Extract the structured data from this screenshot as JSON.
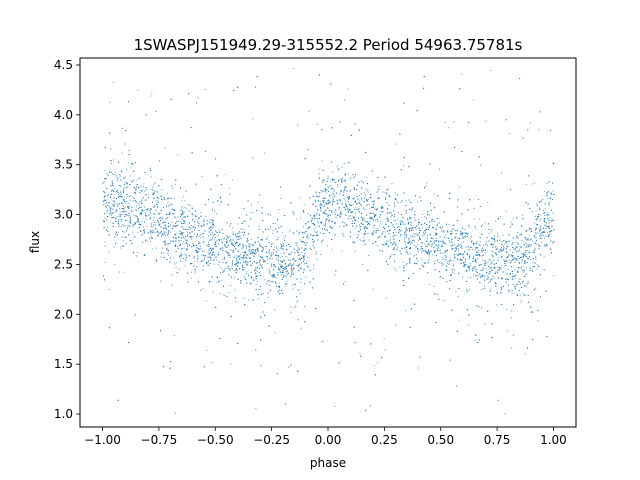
{
  "chart_data": {
    "type": "scatter",
    "title": "1SWASPJ151949.29-315552.2 Period 54963.75781s",
    "xlabel": "phase",
    "ylabel": "flux",
    "xlim": [
      -1.1,
      1.1
    ],
    "ylim": [
      0.87,
      4.57
    ],
    "xticks": [
      -1.0,
      -0.75,
      -0.5,
      -0.25,
      0.0,
      0.25,
      0.5,
      0.75,
      1.0
    ],
    "xtick_labels": [
      "−1.00",
      "−0.75",
      "−0.50",
      "−0.25",
      "0.00",
      "0.25",
      "0.50",
      "0.75",
      "1.00"
    ],
    "yticks": [
      1.0,
      1.5,
      2.0,
      2.5,
      3.0,
      3.5,
      4.0,
      4.5
    ],
    "ytick_labels": [
      "1.0",
      "1.5",
      "2.0",
      "2.5",
      "3.0",
      "3.5",
      "4.0",
      "4.5"
    ],
    "grid": false,
    "point_color": "#1f77b4",
    "series": [
      {
        "x_range": [
          -1.0,
          1.0
        ],
        "trend": {
          "phase": [
            -1.0,
            -0.95,
            -0.9,
            -0.8,
            -0.7,
            -0.6,
            -0.5,
            -0.4,
            -0.3,
            -0.2,
            -0.15,
            -0.1,
            -0.05,
            0.0,
            0.05,
            0.1,
            0.2,
            0.3,
            0.4,
            0.5,
            0.6,
            0.7,
            0.8,
            0.85,
            0.9,
            0.95,
            1.0
          ],
          "flux": [
            3.02,
            3.12,
            3.12,
            3.0,
            2.88,
            2.77,
            2.68,
            2.62,
            2.56,
            2.5,
            2.52,
            2.7,
            2.98,
            3.12,
            3.14,
            3.1,
            2.99,
            2.87,
            2.77,
            2.68,
            2.62,
            2.57,
            2.5,
            2.52,
            2.65,
            2.85,
            3.02
          ]
        },
        "scatter_sd": 0.17,
        "range_outliers": [
          1.0,
          4.5
        ]
      }
    ]
  }
}
